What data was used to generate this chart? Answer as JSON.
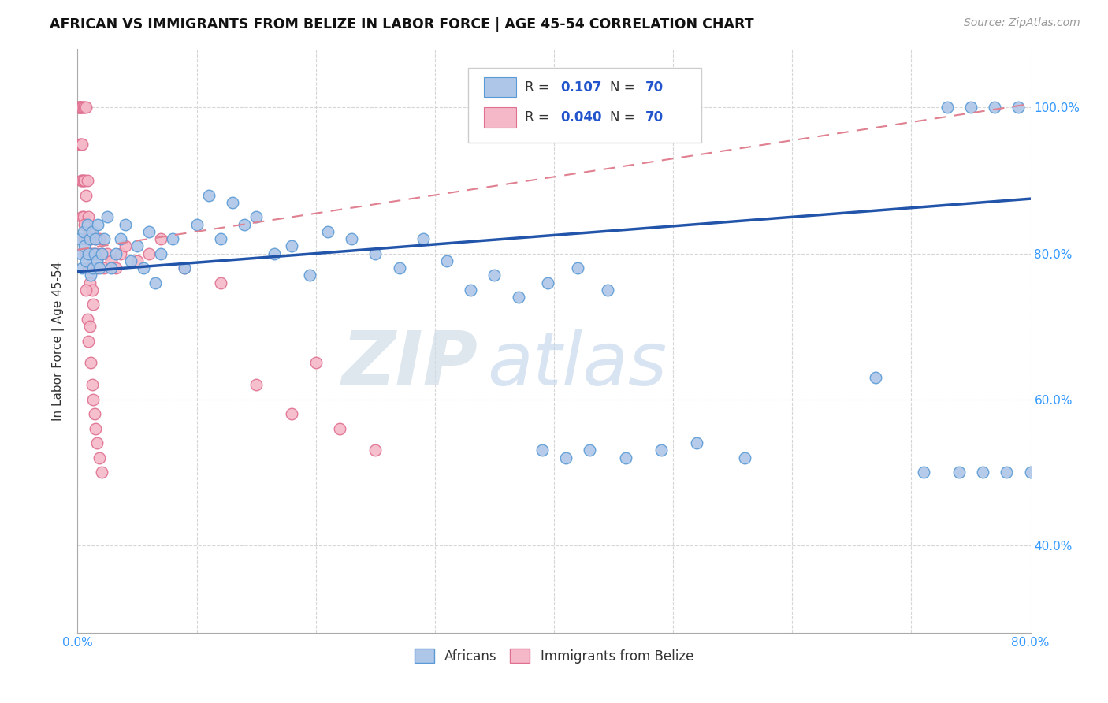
{
  "title": "AFRICAN VS IMMIGRANTS FROM BELIZE IN LABOR FORCE | AGE 45-54 CORRELATION CHART",
  "source": "Source: ZipAtlas.com",
  "ylabel": "In Labor Force | Age 45-54",
  "watermark_zip": "ZIP",
  "watermark_atlas": "atlas",
  "africans_color": "#aec6e8",
  "africans_edge_color": "#5b9bd5",
  "belize_color": "#f4b8c8",
  "belize_edge_color": "#e07090",
  "trendline_african_color": "#2255aa",
  "trendline_belize_color": "#e08090",
  "x_min": 0.0,
  "x_max": 0.8,
  "y_min": 0.28,
  "y_max": 1.08,
  "african_trendline": [
    0.0,
    0.8,
    0.775,
    0.875
  ],
  "belize_trendline": [
    0.0,
    0.8,
    0.805,
    1.005
  ],
  "africans_x": [
    0.002,
    0.003,
    0.004,
    0.005,
    0.006,
    0.007,
    0.008,
    0.009,
    0.01,
    0.011,
    0.012,
    0.013,
    0.014,
    0.015,
    0.016,
    0.017,
    0.018,
    0.02,
    0.022,
    0.025,
    0.028,
    0.032,
    0.036,
    0.04,
    0.045,
    0.05,
    0.055,
    0.06,
    0.065,
    0.07,
    0.08,
    0.09,
    0.1,
    0.11,
    0.12,
    0.13,
    0.14,
    0.15,
    0.165,
    0.18,
    0.195,
    0.21,
    0.23,
    0.25,
    0.27,
    0.29,
    0.31,
    0.33,
    0.35,
    0.37,
    0.395,
    0.42,
    0.445,
    0.39,
    0.41,
    0.43,
    0.46,
    0.49,
    0.52,
    0.56,
    0.67,
    0.71,
    0.74,
    0.76,
    0.78,
    0.8,
    0.73,
    0.75,
    0.77,
    0.79
  ],
  "africans_y": [
    0.82,
    0.8,
    0.78,
    0.83,
    0.81,
    0.79,
    0.84,
    0.8,
    0.82,
    0.77,
    0.83,
    0.78,
    0.8,
    0.82,
    0.79,
    0.84,
    0.78,
    0.8,
    0.82,
    0.85,
    0.78,
    0.8,
    0.82,
    0.84,
    0.79,
    0.81,
    0.78,
    0.83,
    0.76,
    0.8,
    0.82,
    0.78,
    0.84,
    0.88,
    0.82,
    0.87,
    0.84,
    0.85,
    0.8,
    0.81,
    0.77,
    0.83,
    0.82,
    0.8,
    0.78,
    0.82,
    0.79,
    0.75,
    0.77,
    0.74,
    0.76,
    0.78,
    0.75,
    0.53,
    0.52,
    0.53,
    0.52,
    0.53,
    0.54,
    0.52,
    0.63,
    0.5,
    0.5,
    0.5,
    0.5,
    0.5,
    1.0,
    1.0,
    1.0,
    1.0
  ],
  "belize_x": [
    0.001,
    0.001,
    0.002,
    0.002,
    0.002,
    0.003,
    0.003,
    0.003,
    0.003,
    0.004,
    0.004,
    0.004,
    0.004,
    0.005,
    0.005,
    0.005,
    0.006,
    0.006,
    0.006,
    0.007,
    0.007,
    0.007,
    0.008,
    0.008,
    0.009,
    0.009,
    0.01,
    0.01,
    0.01,
    0.011,
    0.011,
    0.012,
    0.012,
    0.013,
    0.013,
    0.014,
    0.015,
    0.016,
    0.017,
    0.018,
    0.02,
    0.022,
    0.025,
    0.028,
    0.032,
    0.036,
    0.04,
    0.05,
    0.06,
    0.07,
    0.09,
    0.12,
    0.15,
    0.2,
    0.18,
    0.22,
    0.25,
    0.006,
    0.007,
    0.008,
    0.009,
    0.01,
    0.011,
    0.012,
    0.013,
    0.014,
    0.015,
    0.016,
    0.018,
    0.02
  ],
  "belize_y": [
    1.0,
    1.0,
    1.0,
    1.0,
    0.95,
    1.0,
    1.0,
    0.95,
    0.9,
    1.0,
    0.95,
    0.9,
    0.85,
    1.0,
    0.9,
    0.85,
    1.0,
    0.9,
    0.82,
    1.0,
    0.88,
    0.8,
    0.9,
    0.82,
    0.85,
    0.78,
    0.83,
    0.8,
    0.76,
    0.82,
    0.78,
    0.8,
    0.75,
    0.78,
    0.73,
    0.8,
    0.82,
    0.78,
    0.8,
    0.82,
    0.8,
    0.78,
    0.8,
    0.79,
    0.78,
    0.8,
    0.81,
    0.79,
    0.8,
    0.82,
    0.78,
    0.76,
    0.62,
    0.65,
    0.58,
    0.56,
    0.53,
    0.84,
    0.75,
    0.71,
    0.68,
    0.7,
    0.65,
    0.62,
    0.6,
    0.58,
    0.56,
    0.54,
    0.52,
    0.5
  ]
}
